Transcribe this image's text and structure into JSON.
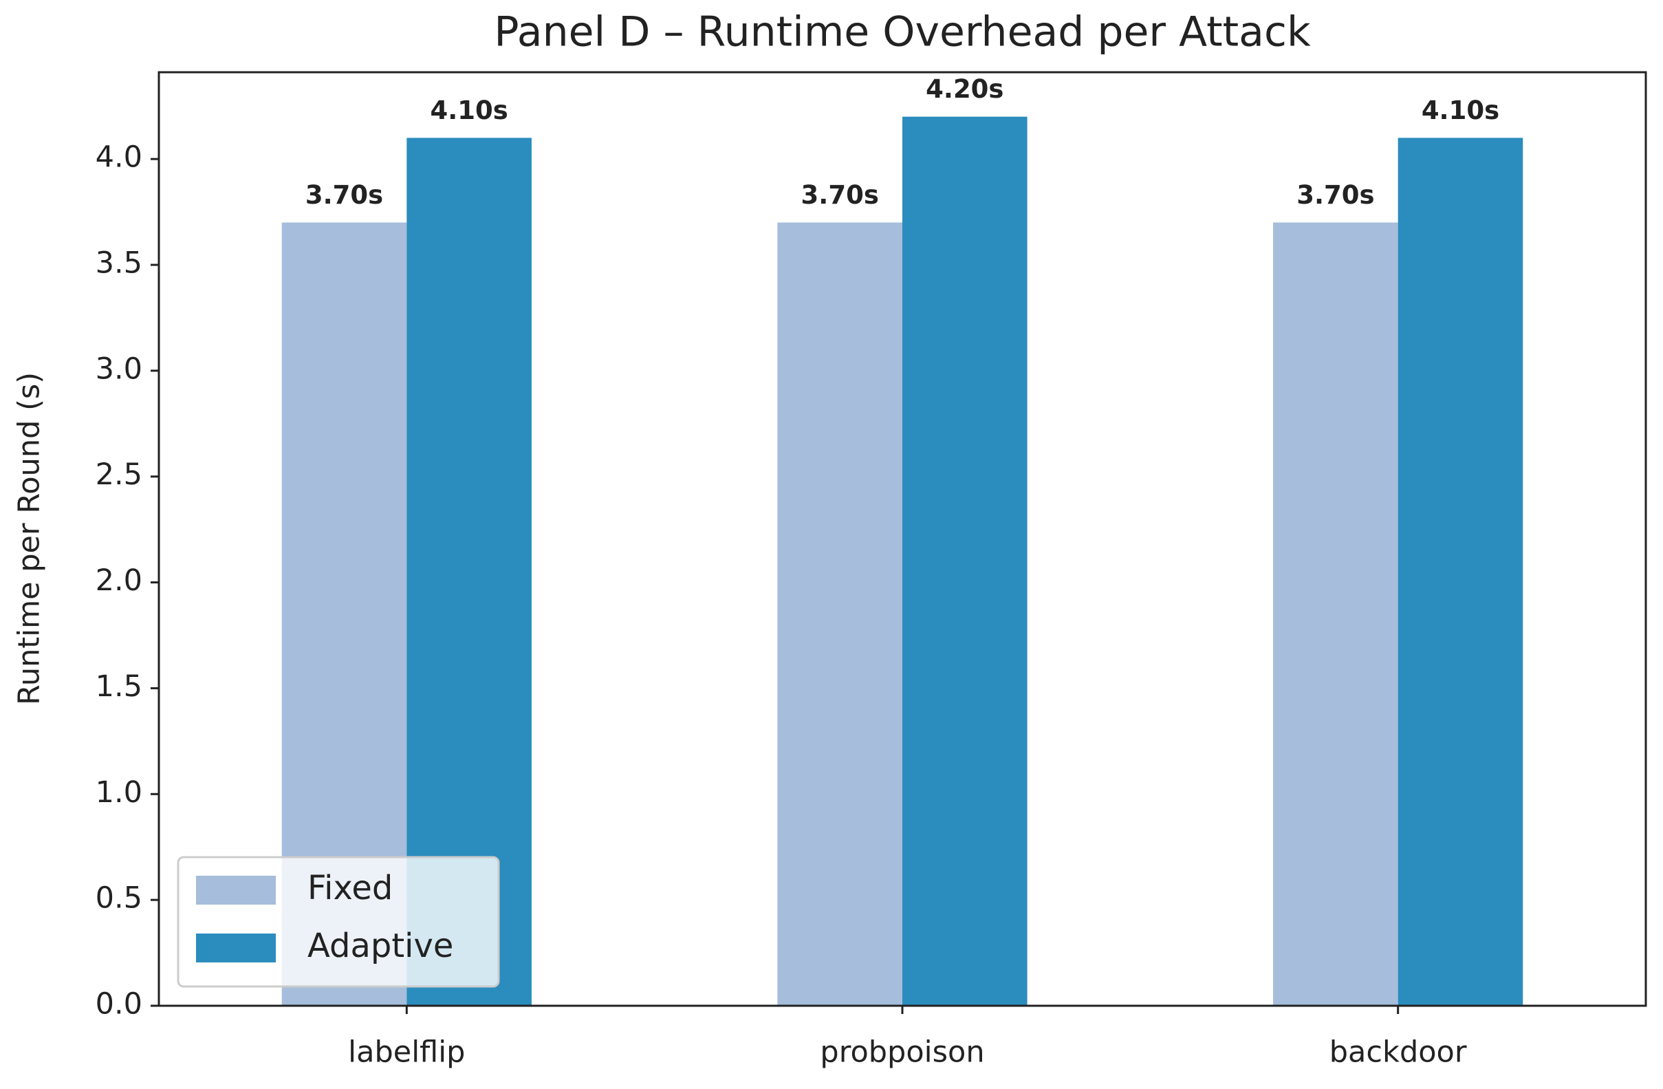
{
  "chart_data": {
    "type": "bar",
    "title": "Panel D – Runtime Overhead per Attack",
    "y_label": "Runtime per Round (s)",
    "categories": [
      "labelflip",
      "probpoison",
      "backdoor"
    ],
    "series": [
      {
        "name": "Fixed",
        "color": "#a6bddb",
        "values": [
          3.7,
          3.7,
          3.7
        ],
        "value_labels": [
          "3.70s",
          "3.70s",
          "3.70s"
        ]
      },
      {
        "name": "Adaptive",
        "color": "#2b8cbe",
        "values": [
          4.1,
          4.2,
          4.1
        ],
        "value_labels": [
          "4.10s",
          "4.20s",
          "4.10s"
        ]
      }
    ],
    "ylim": [
      0,
      4.41
    ],
    "yticks": [
      {
        "value": 0,
        "label": "0.0"
      },
      0.5,
      {
        "value": 1,
        "label": "1.0"
      },
      1.5,
      {
        "value": 2,
        "label": "2.0"
      },
      2.5,
      {
        "value": 3,
        "label": "3.0"
      },
      3.5,
      {
        "value": 4,
        "label": "4.0"
      }
    ],
    "grid": false,
    "legend": "lower left"
  }
}
